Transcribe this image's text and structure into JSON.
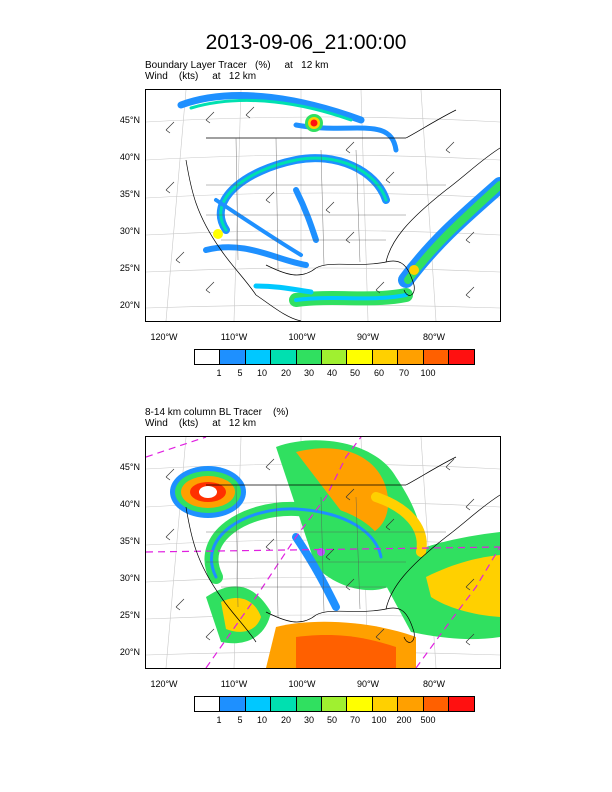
{
  "figure": {
    "title": "2013-09-06_21:00:00"
  },
  "panels": [
    {
      "line1": "Boundary Layer Tracer   (%)     at   12 km",
      "line2": "Wind    (kts)     at   12 km",
      "lat_labels": [
        "45°N",
        "40°N",
        "35°N",
        "30°N",
        "25°N",
        "20°N"
      ],
      "lon_labels": [
        "120°W",
        "110°W",
        "100°W",
        "90°W",
        "80°W"
      ],
      "colorbar_labels": [
        "1",
        "5",
        "10",
        "20",
        "30",
        "40",
        "50",
        "60",
        "70",
        "100"
      ],
      "colors": [
        "#ffffff",
        "#1e90ff",
        "#00c8ff",
        "#00e0b0",
        "#30e060",
        "#a0f030",
        "#ffff00",
        "#ffd000",
        "#ffa000",
        "#ff6000",
        "#ff1010"
      ]
    },
    {
      "line1": "8-14 km column BL Tracer    (%)",
      "line2": "Wind    (kts)     at   12 km",
      "lat_labels": [
        "45°N",
        "40°N",
        "35°N",
        "30°N",
        "25°N",
        "20°N"
      ],
      "lon_labels": [
        "120°W",
        "110°W",
        "100°W",
        "90°W",
        "80°W"
      ],
      "colorbar_labels": [
        "1",
        "5",
        "10",
        "20",
        "30",
        "50",
        "70",
        "100",
        "200",
        "500"
      ],
      "colors": [
        "#ffffff",
        "#1e90ff",
        "#00c8ff",
        "#00e0b0",
        "#30e060",
        "#a0f030",
        "#ffff00",
        "#ffd000",
        "#ffa000",
        "#ff6000",
        "#ff1010"
      ]
    }
  ]
}
